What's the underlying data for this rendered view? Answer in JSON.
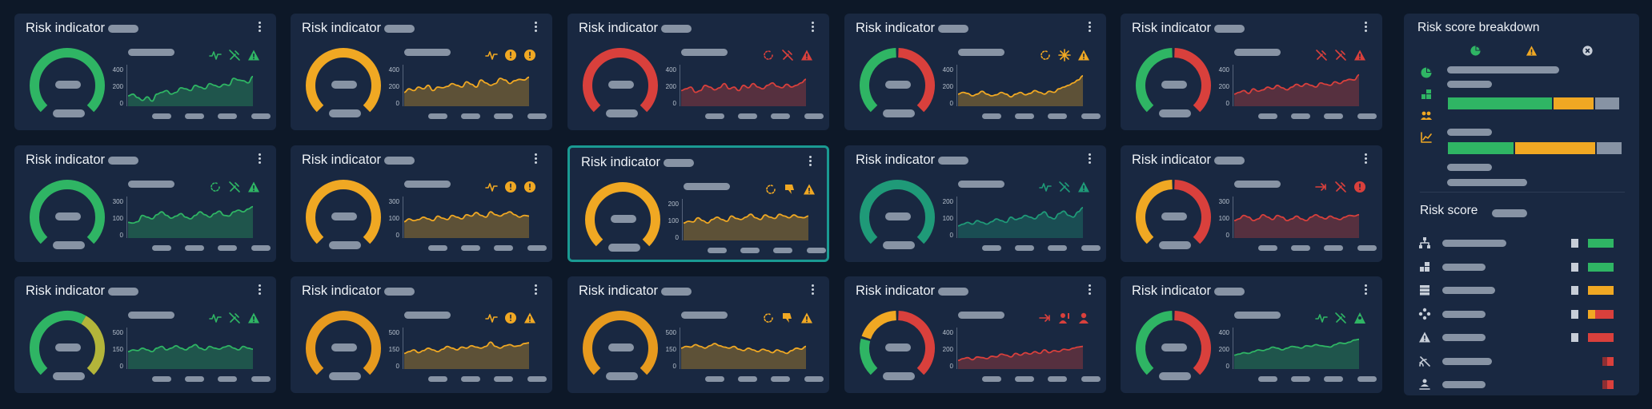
{
  "colors": {
    "green": "#2fb564",
    "teal": "#1f9a78",
    "yellow": "#f0a823",
    "orange": "#e79a1e",
    "red": "#d9403c",
    "bg": "#0d1828",
    "card": "#192841",
    "pill": "#8793a4"
  },
  "cards": [
    {
      "title": "Risk indicator",
      "gauge": "green",
      "chart_color": "green",
      "ticks": [
        "400",
        "200",
        "0"
      ],
      "icons": [
        "pulse-icon",
        "wrench-off-icon",
        "warning-triangle-icon"
      ],
      "series": [
        0.25,
        0.3,
        0.2,
        0.12,
        0.22,
        0.1,
        0.3,
        0.35,
        0.4,
        0.3,
        0.35,
        0.48,
        0.45,
        0.4,
        0.55,
        0.5,
        0.45,
        0.6,
        0.55,
        0.5,
        0.58,
        0.55,
        0.75,
        0.7,
        0.68,
        0.62,
        0.8
      ]
    },
    {
      "title": "Risk indicator",
      "gauge": "yellow",
      "chart_color": "yellow",
      "ticks": [
        "400",
        "200",
        "0"
      ],
      "icons": [
        "pulse-icon",
        "alert-circle-icon",
        "alert-circle-icon"
      ],
      "series": [
        0.35,
        0.45,
        0.4,
        0.5,
        0.45,
        0.55,
        0.4,
        0.5,
        0.48,
        0.52,
        0.6,
        0.55,
        0.5,
        0.65,
        0.58,
        0.5,
        0.7,
        0.62,
        0.55,
        0.6,
        0.75,
        0.7,
        0.6,
        0.68,
        0.72,
        0.7,
        0.78
      ]
    },
    {
      "title": "Risk indicator",
      "gauge": "red",
      "chart_color": "red",
      "ticks": [
        "400",
        "200",
        "0"
      ],
      "icons": [
        "refresh-icon",
        "wrench-off-icon",
        "warning-triangle-icon"
      ],
      "series": [
        0.4,
        0.45,
        0.5,
        0.35,
        0.4,
        0.55,
        0.5,
        0.42,
        0.48,
        0.6,
        0.45,
        0.5,
        0.4,
        0.55,
        0.48,
        0.6,
        0.5,
        0.45,
        0.55,
        0.62,
        0.52,
        0.48,
        0.58,
        0.5,
        0.55,
        0.62,
        0.72
      ]
    },
    {
      "title": "Risk indicator",
      "gauge": "green-red",
      "chart_color": "yellow",
      "ticks": [
        "400",
        "200",
        "0"
      ],
      "icons": [
        "refresh-icon",
        "spark-icon",
        "warning-triangle-icon"
      ],
      "series": [
        0.3,
        0.35,
        0.32,
        0.25,
        0.3,
        0.38,
        0.3,
        0.25,
        0.28,
        0.35,
        0.3,
        0.22,
        0.3,
        0.35,
        0.28,
        0.32,
        0.4,
        0.35,
        0.3,
        0.38,
        0.35,
        0.45,
        0.5,
        0.55,
        0.62,
        0.7,
        0.82
      ]
    },
    {
      "title": "Risk indicator",
      "gauge": "green-red",
      "chart_color": "red",
      "ticks": [
        "400",
        "200",
        "0"
      ],
      "icons": [
        "wrench-off-icon",
        "wrench-off-icon",
        "warning-triangle-icon"
      ],
      "series": [
        0.3,
        0.35,
        0.4,
        0.32,
        0.45,
        0.38,
        0.42,
        0.5,
        0.45,
        0.55,
        0.48,
        0.42,
        0.5,
        0.58,
        0.52,
        0.6,
        0.55,
        0.5,
        0.62,
        0.58,
        0.55,
        0.65,
        0.6,
        0.68,
        0.72,
        0.7,
        0.85
      ]
    },
    {
      "title": "Risk indicator",
      "gauge": "green",
      "chart_color": "green",
      "ticks": [
        "300",
        "100",
        "0"
      ],
      "icons": [
        "refresh-icon",
        "wrench-off-icon",
        "warning-triangle-icon"
      ],
      "series": [
        0.4,
        0.38,
        0.42,
        0.6,
        0.55,
        0.5,
        0.62,
        0.7,
        0.6,
        0.52,
        0.58,
        0.65,
        0.55,
        0.5,
        0.6,
        0.7,
        0.62,
        0.55,
        0.65,
        0.72,
        0.6,
        0.58,
        0.7,
        0.75,
        0.7,
        0.78,
        0.85
      ]
    },
    {
      "title": "Risk indicator",
      "gauge": "yellow",
      "chart_color": "yellow",
      "ticks": [
        "300",
        "100",
        "0"
      ],
      "icons": [
        "pulse-icon",
        "alert-circle-icon",
        "alert-circle-icon"
      ],
      "series": [
        0.42,
        0.5,
        0.45,
        0.48,
        0.55,
        0.5,
        0.45,
        0.58,
        0.52,
        0.48,
        0.6,
        0.55,
        0.5,
        0.62,
        0.58,
        0.68,
        0.6,
        0.55,
        0.7,
        0.62,
        0.58,
        0.65,
        0.7,
        0.62,
        0.55,
        0.6,
        0.58
      ]
    },
    {
      "title": "Risk indicator",
      "gauge": "yellow",
      "chart_color": "yellow",
      "ticks": [
        "200",
        "100",
        "0"
      ],
      "icons": [
        "refresh-icon",
        "thumb-down-icon",
        "warning-triangle-icon"
      ],
      "series": [
        0.45,
        0.5,
        0.48,
        0.6,
        0.52,
        0.45,
        0.55,
        0.62,
        0.55,
        0.5,
        0.65,
        0.58,
        0.55,
        0.62,
        0.7,
        0.6,
        0.55,
        0.68,
        0.62,
        0.58,
        0.7,
        0.65,
        0.6,
        0.68,
        0.62,
        0.6,
        0.65
      ]
    },
    {
      "title": "Risk indicator",
      "gauge": "teal",
      "chart_color": "teal",
      "ticks": [
        "200",
        "100",
        "0"
      ],
      "icons": [
        "pulse-icon",
        "wrench-off-icon",
        "warning-triangle-icon"
      ],
      "series": [
        0.3,
        0.35,
        0.4,
        0.35,
        0.45,
        0.4,
        0.35,
        0.42,
        0.5,
        0.45,
        0.4,
        0.55,
        0.48,
        0.52,
        0.6,
        0.55,
        0.5,
        0.62,
        0.7,
        0.55,
        0.5,
        0.65,
        0.72,
        0.6,
        0.55,
        0.7,
        0.82
      ]
    },
    {
      "title": "Risk indicator",
      "gauge": "yellow-red",
      "chart_color": "red",
      "ticks": [
        "300",
        "100",
        "0"
      ],
      "icons": [
        "arrow-icon",
        "wrench-off-icon",
        "alert-circle-icon"
      ],
      "series": [
        0.45,
        0.5,
        0.6,
        0.55,
        0.45,
        0.5,
        0.62,
        0.55,
        0.48,
        0.6,
        0.55,
        0.45,
        0.5,
        0.58,
        0.5,
        0.45,
        0.55,
        0.62,
        0.55,
        0.5,
        0.58,
        0.52,
        0.48,
        0.55,
        0.6,
        0.58,
        0.62
      ]
    },
    {
      "title": "Risk indicator",
      "gauge": "green-yellow",
      "chart_color": "green",
      "ticks": [
        "500",
        "150",
        "0"
      ],
      "icons": [
        "pulse-icon",
        "wrench-off-icon",
        "warning-triangle-icon"
      ],
      "series": [
        0.45,
        0.5,
        0.48,
        0.55,
        0.5,
        0.45,
        0.55,
        0.6,
        0.5,
        0.55,
        0.62,
        0.55,
        0.5,
        0.58,
        0.65,
        0.55,
        0.5,
        0.6,
        0.55,
        0.52,
        0.58,
        0.62,
        0.55,
        0.5,
        0.6,
        0.55,
        0.52
      ]
    },
    {
      "title": "Risk indicator",
      "gauge": "orange",
      "chart_color": "yellow",
      "ticks": [
        "500",
        "150",
        "0"
      ],
      "icons": [
        "pulse-icon",
        "alert-circle-icon",
        "warning-triangle-icon"
      ],
      "series": [
        0.4,
        0.45,
        0.5,
        0.42,
        0.48,
        0.55,
        0.5,
        0.45,
        0.52,
        0.6,
        0.55,
        0.5,
        0.58,
        0.55,
        0.62,
        0.58,
        0.55,
        0.6,
        0.72,
        0.6,
        0.55,
        0.62,
        0.65,
        0.6,
        0.62,
        0.68,
        0.7
      ]
    },
    {
      "title": "Risk indicator",
      "gauge": "orange",
      "chart_color": "yellow",
      "ticks": [
        "500",
        "150",
        "0"
      ],
      "icons": [
        "refresh-icon",
        "thumb-down-icon",
        "warning-triangle-icon"
      ],
      "series": [
        0.55,
        0.6,
        0.58,
        0.65,
        0.6,
        0.55,
        0.62,
        0.68,
        0.62,
        0.58,
        0.55,
        0.6,
        0.52,
        0.48,
        0.55,
        0.5,
        0.45,
        0.52,
        0.48,
        0.42,
        0.5,
        0.45,
        0.4,
        0.48,
        0.55,
        0.52,
        0.6
      ]
    },
    {
      "title": "Risk indicator",
      "gauge": "tri",
      "chart_color": "red",
      "ticks": [
        "400",
        "200",
        "0"
      ],
      "icons": [
        "arrow-icon",
        "person-alert-icon",
        "person-icon"
      ],
      "series": [
        0.2,
        0.25,
        0.28,
        0.22,
        0.3,
        0.28,
        0.25,
        0.32,
        0.3,
        0.38,
        0.35,
        0.3,
        0.4,
        0.35,
        0.42,
        0.38,
        0.45,
        0.4,
        0.5,
        0.42,
        0.48,
        0.45,
        0.52,
        0.5,
        0.55,
        0.58,
        0.6
      ]
    },
    {
      "title": "Risk indicator",
      "gauge": "green-red",
      "chart_color": "green",
      "ticks": [
        "400",
        "200",
        "0"
      ],
      "icons": [
        "pulse-icon",
        "wrench-off-icon",
        "person-warning-icon"
      ],
      "series": [
        0.35,
        0.38,
        0.42,
        0.4,
        0.45,
        0.5,
        0.48,
        0.52,
        0.58,
        0.55,
        0.5,
        0.55,
        0.6,
        0.58,
        0.55,
        0.62,
        0.6,
        0.65,
        0.62,
        0.6,
        0.58,
        0.65,
        0.7,
        0.68,
        0.72,
        0.78,
        0.8
      ]
    }
  ],
  "panel": {
    "breakdown_title": "Risk score breakdown",
    "header_icons": [
      "pie-chart-icon",
      "warning-triangle-icon",
      "close-circle-icon"
    ],
    "row_icons": [
      "pie-chart-icon",
      "blocks-icon",
      "users-icon",
      "chart-line-icon"
    ],
    "segments": [
      {
        "green": 0.49,
        "yellow": 0.19,
        "grey": 0.12
      },
      {
        "green": 0.31,
        "yellow": 0.38,
        "grey": 0.12
      }
    ],
    "score_title": "Risk score",
    "score_rows": [
      {
        "icon": "hierarchy-icon",
        "bar": "green"
      },
      {
        "icon": "blocks-icon",
        "bar": "green"
      },
      {
        "icon": "server-icon",
        "bar": "yellow"
      },
      {
        "icon": "network-icon",
        "bar": "yellow-red"
      },
      {
        "icon": "warning-triangle-icon",
        "bar": "red"
      },
      {
        "icon": "signal-off-icon",
        "bar": "red-small"
      },
      {
        "icon": "user-network-icon",
        "bar": "red-small"
      }
    ]
  }
}
